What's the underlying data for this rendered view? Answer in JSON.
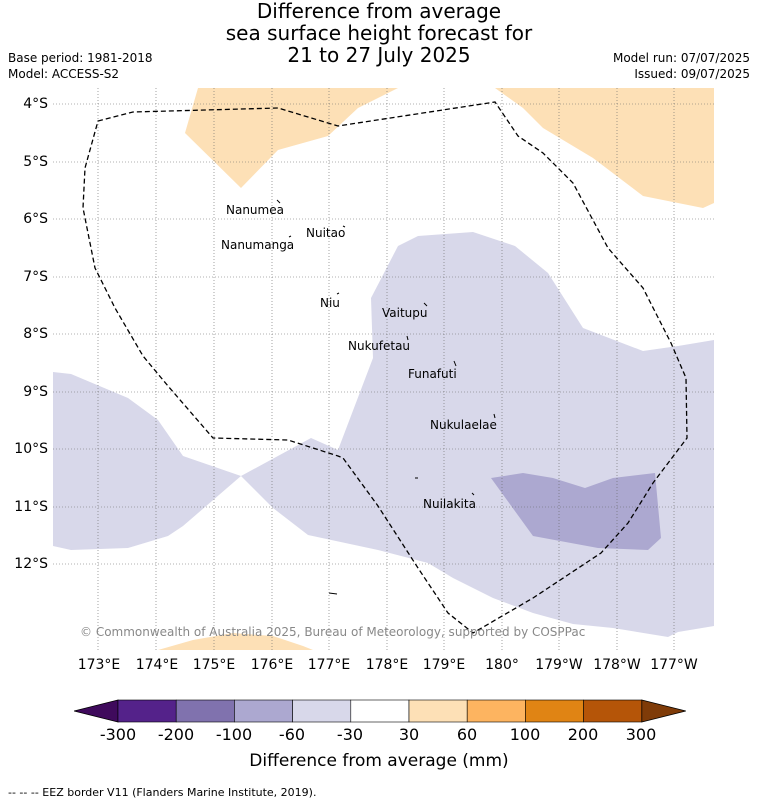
{
  "title": {
    "line1": "Difference from average",
    "line2": "sea surface height forecast for",
    "line3": "21 to 27 July 2025"
  },
  "meta": {
    "base_period": "Base period: 1981-2018",
    "model": "Model: ACCESS-S2",
    "model_run": "Model run: 07/07/2025",
    "issued": "Issued: 09/07/2025"
  },
  "map": {
    "lat_labels": [
      "4°S",
      "5°S",
      "6°S",
      "7°S",
      "8°S",
      "9°S",
      "10°S",
      "11°S",
      "12°S"
    ],
    "lon_labels": [
      "173°E",
      "174°E",
      "175°E",
      "176°E",
      "177°E",
      "178°E",
      "179°E",
      "180°",
      "179°W",
      "178°W",
      "177°W"
    ],
    "islands": [
      "Nanumea",
      "Nuitao",
      "Nanumanga",
      "Niu",
      "Vaitupu",
      "Nukufetau",
      "Funafuti",
      "Nukulaelae",
      "Nuilakita"
    ],
    "copyright": "© Commonwealth of Australia 2025, Bureau of Meteorology, supported by COSPPac",
    "colors": {
      "band_-100_-60": "#aca8d0",
      "band_-60_-30": "#d8d8ea",
      "band_30_60": "#fde0b6",
      "eez_line": "#000000"
    }
  },
  "colorbar": {
    "ticks": [
      "-300",
      "-200",
      "-100",
      "-60",
      "-30",
      "30",
      "60",
      "100",
      "200",
      "300"
    ],
    "colors": [
      "#3f0a5c",
      "#54228a",
      "#8072ae",
      "#aca8d0",
      "#d8d8ea",
      "#ffffff",
      "#fde0b6",
      "#fdb460",
      "#e08414",
      "#b55508",
      "#7f3b08"
    ],
    "title": "Difference from average (mm)"
  },
  "footnote": "--  --  -- EEZ border V11 (Flanders Marine Institute, 2019)."
}
